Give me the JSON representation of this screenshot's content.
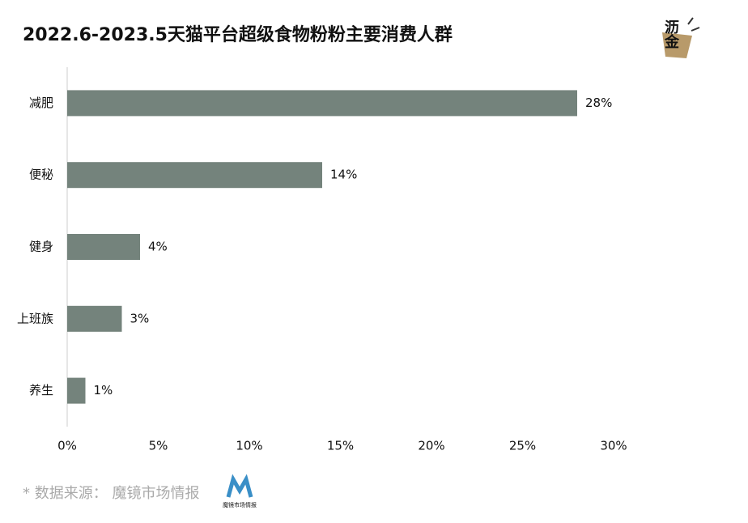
{
  "chart_data": {
    "type": "bar",
    "orientation": "horizontal",
    "title": "2022.6-2023.5天猫平台超级食物粉粉主要消费人群",
    "categories": [
      "减肥",
      "便秘",
      "健身",
      "上班族",
      "养生"
    ],
    "values": [
      28,
      14,
      4,
      3,
      1
    ],
    "value_labels": [
      "28%",
      "14%",
      "4%",
      "3%",
      "1%"
    ],
    "color": "#74837c",
    "xlim": [
      0,
      30
    ],
    "xticks": [
      {
        "value": 0,
        "label": "0%"
      },
      {
        "value": 5,
        "label": "5%"
      },
      {
        "value": 10,
        "label": "10%"
      },
      {
        "value": 15,
        "label": "15%"
      },
      {
        "value": 20,
        "label": "20%"
      },
      {
        "value": 25,
        "label": "25%"
      },
      {
        "value": 30,
        "label": "30%"
      }
    ],
    "source": "* 数据来源： 魔镜市场情报",
    "logo_text": "沥金",
    "source_logo_text": "魔镜市场情报"
  }
}
